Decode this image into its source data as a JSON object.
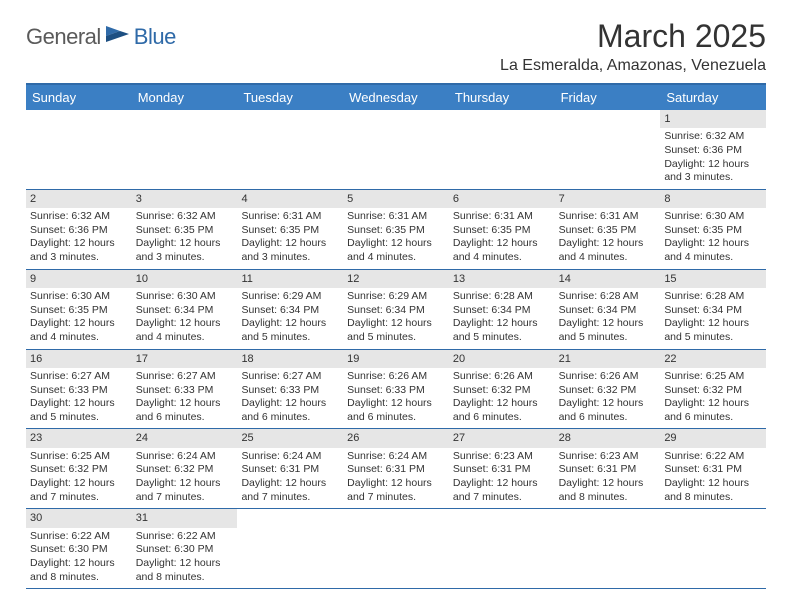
{
  "logo": {
    "part1": "General",
    "part2": "Blue"
  },
  "title": "March 2025",
  "location": "La Esmeralda, Amazonas, Venezuela",
  "colors": {
    "header_bg": "#3b7fc4",
    "border": "#2f6aa8",
    "daynum_bg": "#e6e6e6",
    "text": "#333333",
    "logo_gray": "#5a5a5a",
    "logo_blue": "#2f6aa8"
  },
  "columns": [
    "Sunday",
    "Monday",
    "Tuesday",
    "Wednesday",
    "Thursday",
    "Friday",
    "Saturday"
  ],
  "weeks": [
    [
      null,
      null,
      null,
      null,
      null,
      null,
      {
        "d": "1",
        "sr": "6:32 AM",
        "ss": "6:36 PM",
        "dl": "12 hours and 3 minutes."
      }
    ],
    [
      {
        "d": "2",
        "sr": "6:32 AM",
        "ss": "6:36 PM",
        "dl": "12 hours and 3 minutes."
      },
      {
        "d": "3",
        "sr": "6:32 AM",
        "ss": "6:35 PM",
        "dl": "12 hours and 3 minutes."
      },
      {
        "d": "4",
        "sr": "6:31 AM",
        "ss": "6:35 PM",
        "dl": "12 hours and 3 minutes."
      },
      {
        "d": "5",
        "sr": "6:31 AM",
        "ss": "6:35 PM",
        "dl": "12 hours and 4 minutes."
      },
      {
        "d": "6",
        "sr": "6:31 AM",
        "ss": "6:35 PM",
        "dl": "12 hours and 4 minutes."
      },
      {
        "d": "7",
        "sr": "6:31 AM",
        "ss": "6:35 PM",
        "dl": "12 hours and 4 minutes."
      },
      {
        "d": "8",
        "sr": "6:30 AM",
        "ss": "6:35 PM",
        "dl": "12 hours and 4 minutes."
      }
    ],
    [
      {
        "d": "9",
        "sr": "6:30 AM",
        "ss": "6:35 PM",
        "dl": "12 hours and 4 minutes."
      },
      {
        "d": "10",
        "sr": "6:30 AM",
        "ss": "6:34 PM",
        "dl": "12 hours and 4 minutes."
      },
      {
        "d": "11",
        "sr": "6:29 AM",
        "ss": "6:34 PM",
        "dl": "12 hours and 5 minutes."
      },
      {
        "d": "12",
        "sr": "6:29 AM",
        "ss": "6:34 PM",
        "dl": "12 hours and 5 minutes."
      },
      {
        "d": "13",
        "sr": "6:28 AM",
        "ss": "6:34 PM",
        "dl": "12 hours and 5 minutes."
      },
      {
        "d": "14",
        "sr": "6:28 AM",
        "ss": "6:34 PM",
        "dl": "12 hours and 5 minutes."
      },
      {
        "d": "15",
        "sr": "6:28 AM",
        "ss": "6:34 PM",
        "dl": "12 hours and 5 minutes."
      }
    ],
    [
      {
        "d": "16",
        "sr": "6:27 AM",
        "ss": "6:33 PM",
        "dl": "12 hours and 5 minutes."
      },
      {
        "d": "17",
        "sr": "6:27 AM",
        "ss": "6:33 PM",
        "dl": "12 hours and 6 minutes."
      },
      {
        "d": "18",
        "sr": "6:27 AM",
        "ss": "6:33 PM",
        "dl": "12 hours and 6 minutes."
      },
      {
        "d": "19",
        "sr": "6:26 AM",
        "ss": "6:33 PM",
        "dl": "12 hours and 6 minutes."
      },
      {
        "d": "20",
        "sr": "6:26 AM",
        "ss": "6:32 PM",
        "dl": "12 hours and 6 minutes."
      },
      {
        "d": "21",
        "sr": "6:26 AM",
        "ss": "6:32 PM",
        "dl": "12 hours and 6 minutes."
      },
      {
        "d": "22",
        "sr": "6:25 AM",
        "ss": "6:32 PM",
        "dl": "12 hours and 6 minutes."
      }
    ],
    [
      {
        "d": "23",
        "sr": "6:25 AM",
        "ss": "6:32 PM",
        "dl": "12 hours and 7 minutes."
      },
      {
        "d": "24",
        "sr": "6:24 AM",
        "ss": "6:32 PM",
        "dl": "12 hours and 7 minutes."
      },
      {
        "d": "25",
        "sr": "6:24 AM",
        "ss": "6:31 PM",
        "dl": "12 hours and 7 minutes."
      },
      {
        "d": "26",
        "sr": "6:24 AM",
        "ss": "6:31 PM",
        "dl": "12 hours and 7 minutes."
      },
      {
        "d": "27",
        "sr": "6:23 AM",
        "ss": "6:31 PM",
        "dl": "12 hours and 7 minutes."
      },
      {
        "d": "28",
        "sr": "6:23 AM",
        "ss": "6:31 PM",
        "dl": "12 hours and 8 minutes."
      },
      {
        "d": "29",
        "sr": "6:22 AM",
        "ss": "6:31 PM",
        "dl": "12 hours and 8 minutes."
      }
    ],
    [
      {
        "d": "30",
        "sr": "6:22 AM",
        "ss": "6:30 PM",
        "dl": "12 hours and 8 minutes."
      },
      {
        "d": "31",
        "sr": "6:22 AM",
        "ss": "6:30 PM",
        "dl": "12 hours and 8 minutes."
      },
      null,
      null,
      null,
      null,
      null
    ]
  ],
  "labels": {
    "sunrise": "Sunrise:",
    "sunset": "Sunset:",
    "daylight": "Daylight:"
  }
}
